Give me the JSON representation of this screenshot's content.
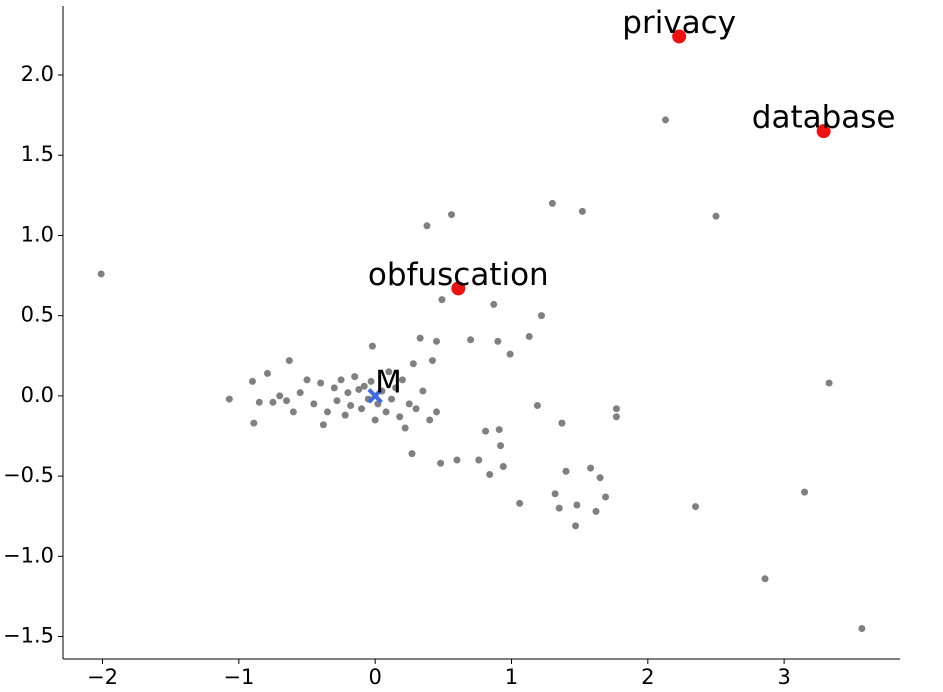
{
  "chart_data": {
    "type": "scatter",
    "xlim": [
      -2.29,
      3.85
    ],
    "ylim": [
      -1.64,
      2.43
    ],
    "xticks": [
      {
        "value": -2,
        "label": "−2"
      },
      {
        "value": -1,
        "label": "−1"
      },
      0,
      1,
      2,
      3
    ],
    "yticks": [
      {
        "value": -1.5,
        "label": "−1.5"
      },
      {
        "value": -1.0,
        "label": "−1.0"
      },
      {
        "value": -0.5,
        "label": "−0.5"
      },
      {
        "value": 0,
        "label": "0.0"
      },
      {
        "value": 0.5,
        "label": "0.5"
      },
      {
        "value": 1.0,
        "label": "1.0"
      },
      {
        "value": 1.5,
        "label": "1.5"
      },
      {
        "value": 2.0,
        "label": "2.0"
      }
    ],
    "series": [
      {
        "color": "#808080",
        "marker": "circle",
        "size": 3.5,
        "x": [
          -2.01,
          2.13,
          0.38,
          0.56,
          1.3,
          1.52,
          2.5,
          0.49,
          0.87,
          1.22,
          1.13,
          0.9,
          0.99,
          0.7,
          0.45,
          3.33,
          -1.07,
          -0.9,
          -0.79,
          -0.89,
          -0.63,
          1.77,
          1.77,
          1.19,
          1.37,
          0.81,
          0.91,
          0.92,
          0.76,
          0.84,
          0.94,
          0.6,
          0.48,
          0.27,
          1.06,
          1.32,
          1.35,
          1.4,
          1.48,
          1.47,
          1.58,
          1.65,
          1.69,
          1.62,
          2.35,
          3.15,
          2.86,
          3.57,
          -0.55,
          -0.45,
          -0.4,
          -0.35,
          -0.3,
          -0.28,
          -0.25,
          -0.22,
          -0.2,
          -0.18,
          -0.15,
          -0.12,
          -0.1,
          -0.08,
          -0.05,
          -0.03,
          0.02,
          0.05,
          0.08,
          0.1,
          0.12,
          0.15,
          0.18,
          0.2,
          0.25,
          0.28,
          0.3,
          0.35,
          0.4,
          0.42,
          -0.65,
          -0.7,
          -0.6,
          -0.5,
          -0.38,
          -0.02,
          0.0,
          0.22,
          0.45,
          0.33,
          -0.75,
          -0.85
        ],
        "y": [
          0.76,
          1.72,
          1.06,
          1.13,
          1.2,
          1.15,
          1.12,
          0.6,
          0.57,
          0.5,
          0.37,
          0.34,
          0.26,
          0.35,
          0.34,
          0.08,
          -0.02,
          0.09,
          0.14,
          -0.17,
          0.22,
          -0.08,
          -0.13,
          -0.06,
          -0.17,
          -0.22,
          -0.21,
          -0.31,
          -0.4,
          -0.49,
          -0.44,
          -0.4,
          -0.42,
          -0.36,
          -0.67,
          -0.61,
          -0.7,
          -0.47,
          -0.68,
          -0.81,
          -0.45,
          -0.51,
          -0.63,
          -0.72,
          -0.69,
          -0.6,
          -1.14,
          -1.45,
          0.02,
          -0.05,
          0.08,
          -0.1,
          0.05,
          -0.03,
          0.1,
          -0.12,
          0.02,
          -0.06,
          0.12,
          0.04,
          -0.08,
          0.06,
          -0.02,
          0.09,
          -0.05,
          0.03,
          -0.1,
          0.15,
          -0.02,
          0.05,
          -0.13,
          0.1,
          -0.05,
          0.2,
          -0.08,
          0.03,
          -0.15,
          0.22,
          -0.03,
          0.0,
          -0.1,
          0.1,
          -0.18,
          0.31,
          -0.15,
          -0.2,
          -0.1,
          0.36,
          -0.04,
          -0.04
        ]
      },
      {
        "color": "#ee1111",
        "marker": "circle",
        "size": 7,
        "x": [
          2.23,
          3.29,
          0.61
        ],
        "y": [
          2.24,
          1.65,
          0.67
        ],
        "labels": [
          "privacy",
          "database",
          "obfuscation"
        ]
      },
      {
        "color": "#4169e1",
        "marker": "x",
        "size": 7,
        "x": [
          0
        ],
        "y": [
          0
        ],
        "labels": [
          "M"
        ]
      }
    ]
  }
}
